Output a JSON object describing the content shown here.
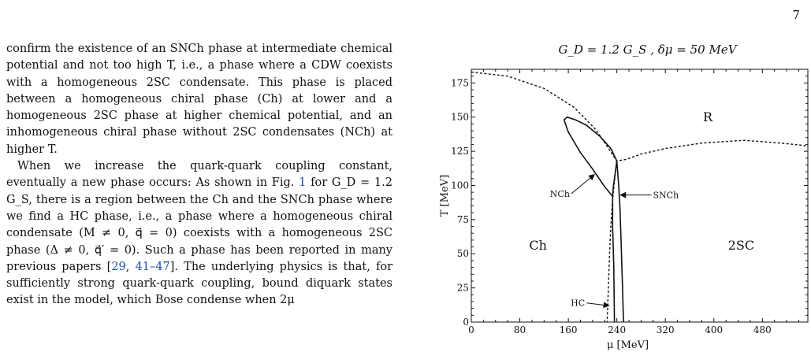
{
  "page": {
    "number": "7"
  },
  "text": {
    "p1": "confirm the existence of an SNCh phase at intermediate chemical potential and not too high T, i.e., a phase where a CDW coexists with a homogeneous 2SC condensate. This phase is placed between a homogeneous chiral phase (Ch) at lower and a homogeneous 2SC phase at higher chemical potential, and an inhomogeneous chiral phase without 2SC condensates (NCh) at higher T.",
    "p2_a": "When we increase the quark-quark coupling constant, eventually a new phase occurs: As shown in Fig. ",
    "p2_ref": "1",
    "p2_b": " for G_D = 1.2 G_S, there is a region between the Ch and the SNCh phase where we find a HC phase, i.e., a phase where a homogeneous chiral condensate (M ≠ 0, q⃗ = 0) coexists with a homogeneous 2SC phase (Δ ≠ 0, q⃗′ = 0). Such a phase has been reported in many previous papers [",
    "p2_cite1": "29",
    "p2_c": ", ",
    "p2_cite2": "41–47",
    "p2_d": "]. The underlying physics is that, for sufficiently strong quark-quark coupling, bound diquark states exist in the model, which Bose condense when 2μ"
  },
  "chart_data": {
    "type": "line",
    "title": "G_D = 1.2 G_S ,   δμ = 50 MeV",
    "xlabel": "μ [MeV]",
    "ylabel": "T [MeV]",
    "xlim": [
      0,
      555
    ],
    "ylim": [
      0,
      185
    ],
    "xticks": [
      "0",
      "80",
      "160",
      "240",
      "320",
      "400",
      "480"
    ],
    "yticks": [
      "0",
      "25",
      "50",
      "75",
      "100",
      "125",
      "150",
      "175"
    ],
    "phase_labels": [
      {
        "text": "R",
        "mu": 390,
        "T": 147
      },
      {
        "text": "Ch",
        "mu": 110,
        "T": 53
      },
      {
        "text": "2SC",
        "mu": 445,
        "T": 53
      }
    ],
    "arrow_labels": [
      {
        "text": "NCh",
        "label_mu": 165,
        "label_T": 94,
        "tip_mu": 203,
        "tip_T": 108
      },
      {
        "text": "SNCh",
        "label_mu": 297,
        "label_T": 93,
        "tip_mu": 246,
        "tip_T": 93
      },
      {
        "text": "HC",
        "label_mu": 190,
        "label_T": 14,
        "tip_mu": 227,
        "tip_T": 12
      }
    ],
    "series": [
      {
        "style": "dashed",
        "points": [
          [
            0,
            183
          ],
          [
            60,
            180
          ],
          [
            120,
            171
          ],
          [
            170,
            157
          ],
          [
            205,
            141
          ],
          [
            225,
            128
          ],
          [
            240,
            118
          ],
          [
            255,
            119
          ],
          [
            280,
            123
          ],
          [
            320,
            127
          ],
          [
            380,
            131
          ],
          [
            450,
            133
          ],
          [
            510,
            131
          ],
          [
            555,
            129
          ]
        ]
      },
      {
        "style": "dashed",
        "points": [
          [
            240,
            118
          ],
          [
            236,
            103
          ],
          [
            233,
            90
          ],
          [
            230,
            70
          ],
          [
            228,
            50
          ],
          [
            226,
            25
          ],
          [
            224,
            0
          ]
        ]
      },
      {
        "style": "solid",
        "points": [
          [
            240,
            118
          ],
          [
            230,
            127
          ],
          [
            212,
            136
          ],
          [
            190,
            144
          ],
          [
            172,
            148
          ],
          [
            158,
            150
          ],
          [
            153,
            148
          ],
          [
            160,
            139
          ],
          [
            180,
            124
          ],
          [
            200,
            112
          ],
          [
            220,
            99
          ],
          [
            233,
            92
          ]
        ]
      },
      {
        "style": "solid",
        "points": [
          [
            240,
            118
          ],
          [
            243,
            100
          ],
          [
            245,
            85
          ],
          [
            247,
            60
          ],
          [
            249,
            30
          ],
          [
            251,
            0
          ]
        ]
      },
      {
        "style": "solid",
        "points": [
          [
            240,
            118
          ],
          [
            237,
            108
          ],
          [
            234,
            98
          ],
          [
            233,
            92
          ],
          [
            233,
            70
          ],
          [
            235,
            40
          ],
          [
            236,
            0
          ]
        ]
      }
    ]
  }
}
